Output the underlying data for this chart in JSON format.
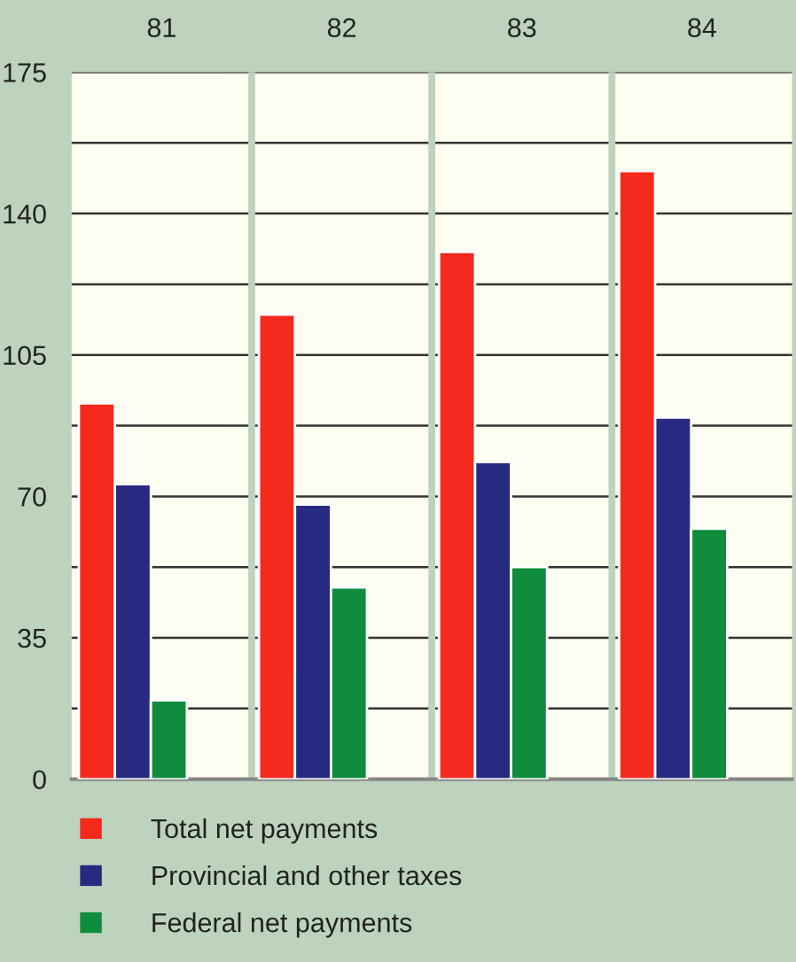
{
  "chart_data": {
    "type": "bar",
    "categories": [
      "81",
      "82",
      "83",
      "84"
    ],
    "ylim": [
      0,
      175
    ],
    "yticks": [
      0,
      {
        "value": 17.5,
        "label": null
      },
      35,
      {
        "value": 52.5,
        "label": null
      },
      70,
      {
        "value": 87.5,
        "label": null
      },
      105,
      {
        "value": 122.5,
        "label": null
      },
      140,
      {
        "value": 157.5,
        "label": null
      },
      175
    ],
    "grid": "y",
    "legend": "bottom",
    "series": [
      {
        "name": "Total net payments",
        "color": "#f42a1c",
        "values": [
          93,
          115,
          130.5,
          150.5
        ]
      },
      {
        "name": "Provincial and other taxes",
        "color": "#262a80",
        "values": [
          73,
          68,
          78.5,
          89.5
        ]
      },
      {
        "name": "Federal net payments",
        "color": "#0f8d3c",
        "values": [
          19.5,
          47.5,
          52.5,
          62
        ]
      }
    ]
  }
}
